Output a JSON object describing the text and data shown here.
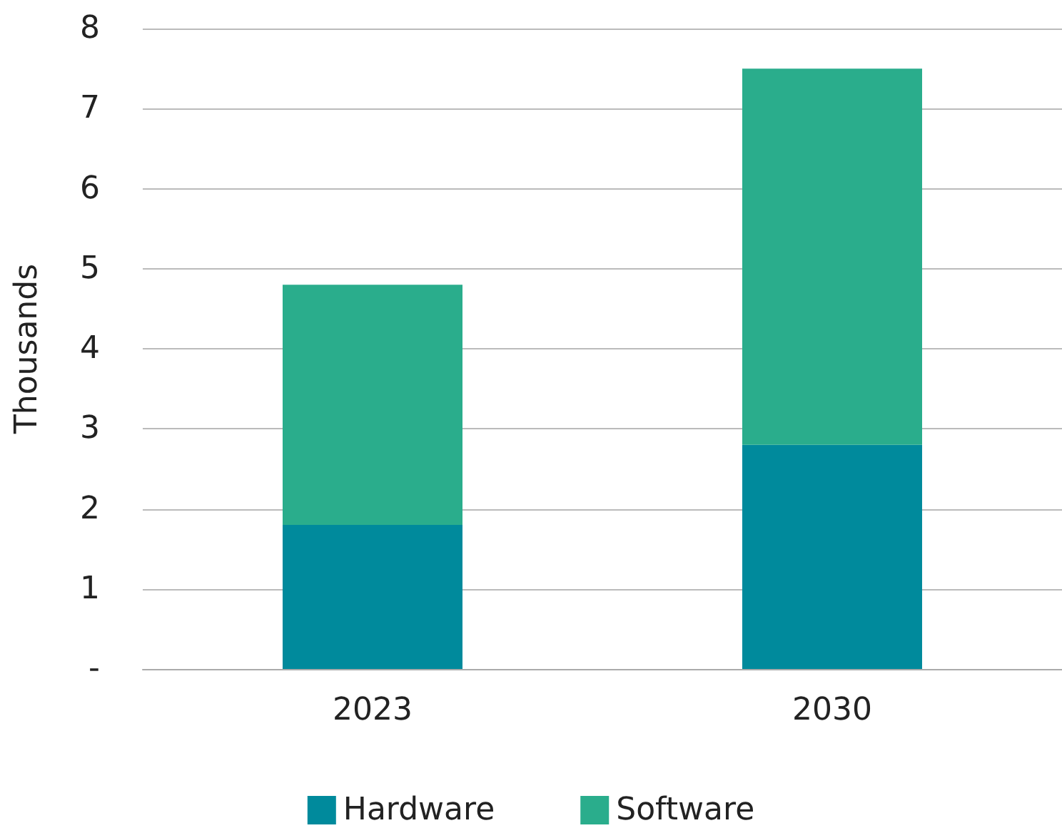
{
  "chart_data": {
    "type": "bar",
    "stacked": true,
    "categories": [
      "2023",
      "2030"
    ],
    "ylabel": "Thousands",
    "ylim": [
      0,
      8
    ],
    "yticks": [
      {
        "value": 0,
        "label": "-"
      },
      1,
      2,
      3,
      4,
      5,
      6,
      7,
      8
    ],
    "grid": "y",
    "legend": "bottom",
    "series": [
      {
        "name": "Hardware",
        "color": "#008a9c",
        "values": [
          1.8,
          2.8
        ]
      },
      {
        "name": "Software",
        "color": "#2aad8c",
        "values": [
          3.0,
          4.7
        ]
      }
    ]
  }
}
